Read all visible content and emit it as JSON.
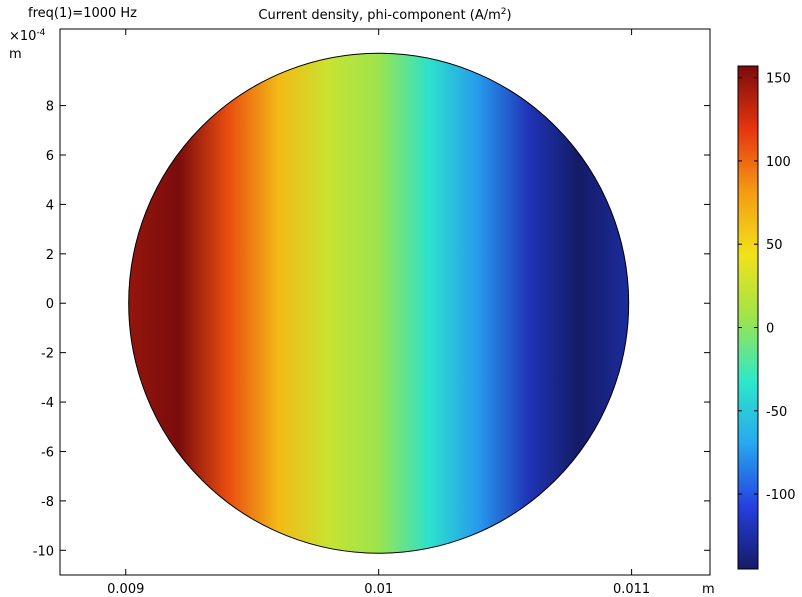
{
  "chart_data": {
    "type": "heatmap",
    "title_prefix": "Current density, phi-component (A/m",
    "title_sup": "2",
    "title_suffix": ")",
    "parameter_label": "freq(1)=1000 Hz",
    "x_axis": {
      "ticks": [
        0.009,
        0.01,
        0.011
      ],
      "tick_labels": [
        "0.009",
        "0.01",
        "0.011"
      ],
      "unit": "m",
      "range": [
        0.00874,
        0.01131
      ]
    },
    "y_axis": {
      "ticks": [
        -10,
        -8,
        -6,
        -4,
        -2,
        0,
        2,
        4,
        6,
        8
      ],
      "tick_labels": [
        "-10",
        "-8",
        "-6",
        "-4",
        "-2",
        "0",
        "2",
        "4",
        "6",
        "8"
      ],
      "scale_prefix": "×10",
      "scale_exponent": "-4",
      "unit": "m",
      "range": [
        -11.0,
        11.1
      ]
    },
    "domain": {
      "shape": "circle",
      "center_x": 0.01,
      "center_y": 0,
      "radius": 0.001
    },
    "color_range": {
      "min": -145,
      "max": 157
    },
    "colorbar": {
      "ticks": [
        150,
        100,
        50,
        0,
        -50,
        -100
      ],
      "tick_labels": [
        "150",
        "100",
        "50",
        "0",
        "-50",
        "-100"
      ],
      "colormap": "rainbow",
      "colors": [
        "#141b66",
        "#2540e0",
        "#27a8ef",
        "#2ee8c9",
        "#9ee44a",
        "#f1e21a",
        "#f59b13",
        "#e5350f",
        "#7a0c0c"
      ]
    },
    "field_profile": {
      "x": [
        0.009,
        0.0092,
        0.0094,
        0.0096,
        0.0098,
        0.01,
        0.0102,
        0.0104,
        0.0106,
        0.0108,
        0.011
      ],
      "value": [
        148,
        157,
        110,
        65,
        25,
        5,
        -35,
        -75,
        -120,
        -145,
        -128
      ]
    }
  }
}
